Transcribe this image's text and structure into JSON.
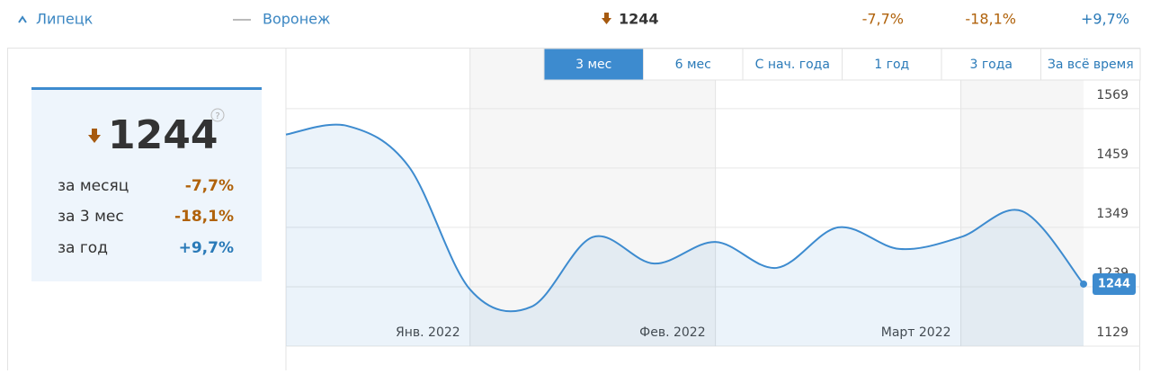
{
  "top": {
    "region": "Липецк",
    "compare": "Воронеж",
    "value": "1244",
    "changes": [
      "-7,7%",
      "-18,1%",
      "+9,7%"
    ]
  },
  "panel": {
    "value": "1244",
    "rows": [
      {
        "label": "за месяц",
        "value": "-7,7%"
      },
      {
        "label": "за 3 мес",
        "value": "-18,1%"
      },
      {
        "label": "за год",
        "value": "+9,7%"
      }
    ]
  },
  "tabs": [
    "3 мес",
    "6 мес",
    "С нач. года",
    "1 год",
    "3 года",
    "За всё время"
  ],
  "chart_data": {
    "type": "line",
    "color": "#3d8bcf",
    "x": [
      0,
      1,
      2,
      3,
      4,
      5,
      6,
      7,
      8,
      9,
      10,
      11,
      12,
      13
    ],
    "values": [
      1521,
      1537,
      1462,
      1234,
      1202,
      1331,
      1282,
      1322,
      1274,
      1349,
      1309,
      1331,
      1379,
      1244
    ],
    "xlim": [
      0,
      13
    ],
    "ylim": [
      1129,
      1622
    ],
    "xticks": [
      {
        "value": 3,
        "label": "Янв. 2022"
      },
      {
        "value": 7,
        "label": "Фев. 2022"
      },
      {
        "value": 11,
        "label": "Март 2022"
      }
    ],
    "yticks": [
      1129,
      1239,
      1349,
      1459,
      1569
    ],
    "grid": true
  }
}
